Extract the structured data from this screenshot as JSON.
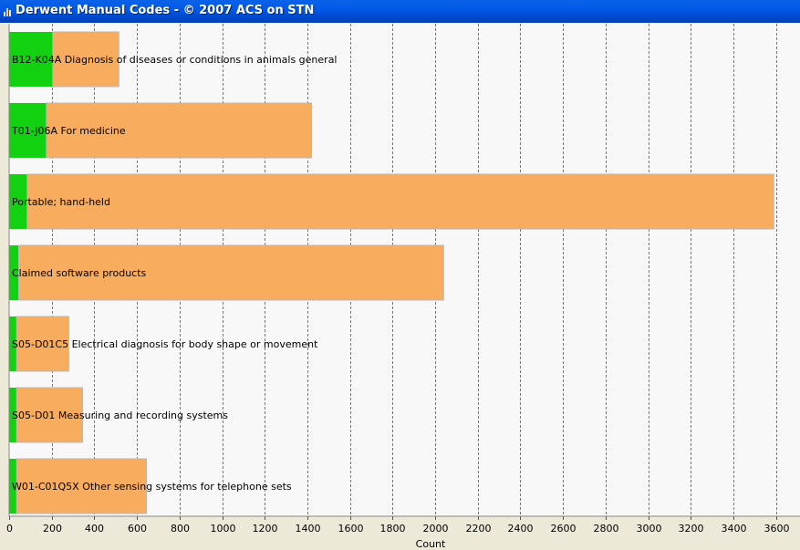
{
  "window": {
    "title": "Derwent Manual Codes - © 2007 ACS on STN",
    "icon": "bar-chart-icon"
  },
  "colors": {
    "green": "#11d111",
    "orange": "#f8ac5e",
    "plot_bg": "#f8f8f8",
    "frame_bg": "#ece9d8",
    "titlebar": "#0054e3"
  },
  "chart_data": {
    "type": "bar",
    "orientation": "horizontal",
    "stacked": true,
    "categories": [
      "B12-K04A Diagnosis of diseases or conditions in animals general",
      "T01-J06A For medicine",
      "Portable; hand-held",
      "Claimed software products",
      "S05-D01C5 Electrical diagnosis for body shape or movement",
      "S05-D01 Measuring and recording systems",
      "W01-C01Q5X Other sensing systems for telephone sets"
    ],
    "series": [
      {
        "color": "#11d111",
        "values": [
          205,
          175,
          85,
          45,
          35,
          35,
          35
        ]
      },
      {
        "color": "#f8ac5e",
        "values": [
          310,
          1245,
          3505,
          1995,
          245,
          310,
          610
        ]
      }
    ],
    "xlabel": "Count",
    "xlim": [
      0,
      3700
    ],
    "xticks": [
      0,
      200,
      400,
      600,
      800,
      1000,
      1200,
      1400,
      1600,
      1800,
      2000,
      2200,
      2400,
      2600,
      2800,
      3000,
      3200,
      3400,
      3600
    ],
    "grid": "vertical-dashed"
  }
}
